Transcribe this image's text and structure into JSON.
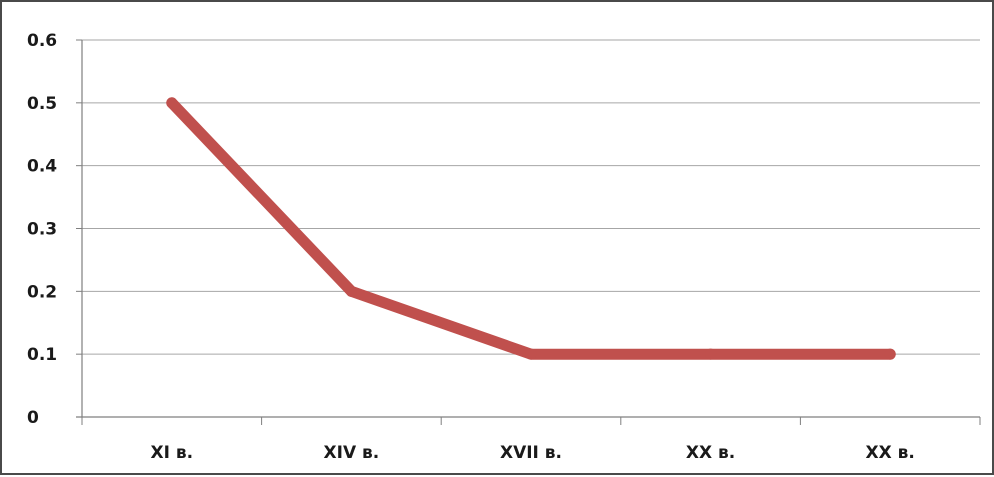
{
  "chart_data": {
    "type": "line",
    "categories": [
      "XI в.",
      "XIV в.",
      "XVII в.",
      "XX в.",
      "XX в."
    ],
    "series": [
      {
        "values": [
          0.5,
          0.2,
          0.1,
          0.1,
          0.1
        ]
      }
    ],
    "ylim": [
      0,
      0.6
    ],
    "yticks": [
      "0",
      "0.1",
      "0.2",
      "0.3",
      "0.4",
      "0.5",
      "0.6"
    ],
    "grid": true,
    "legend": "none",
    "line_color": "#c0504d",
    "grid_color": "#a6a6a6",
    "axis_color": "#7f7f7f"
  }
}
